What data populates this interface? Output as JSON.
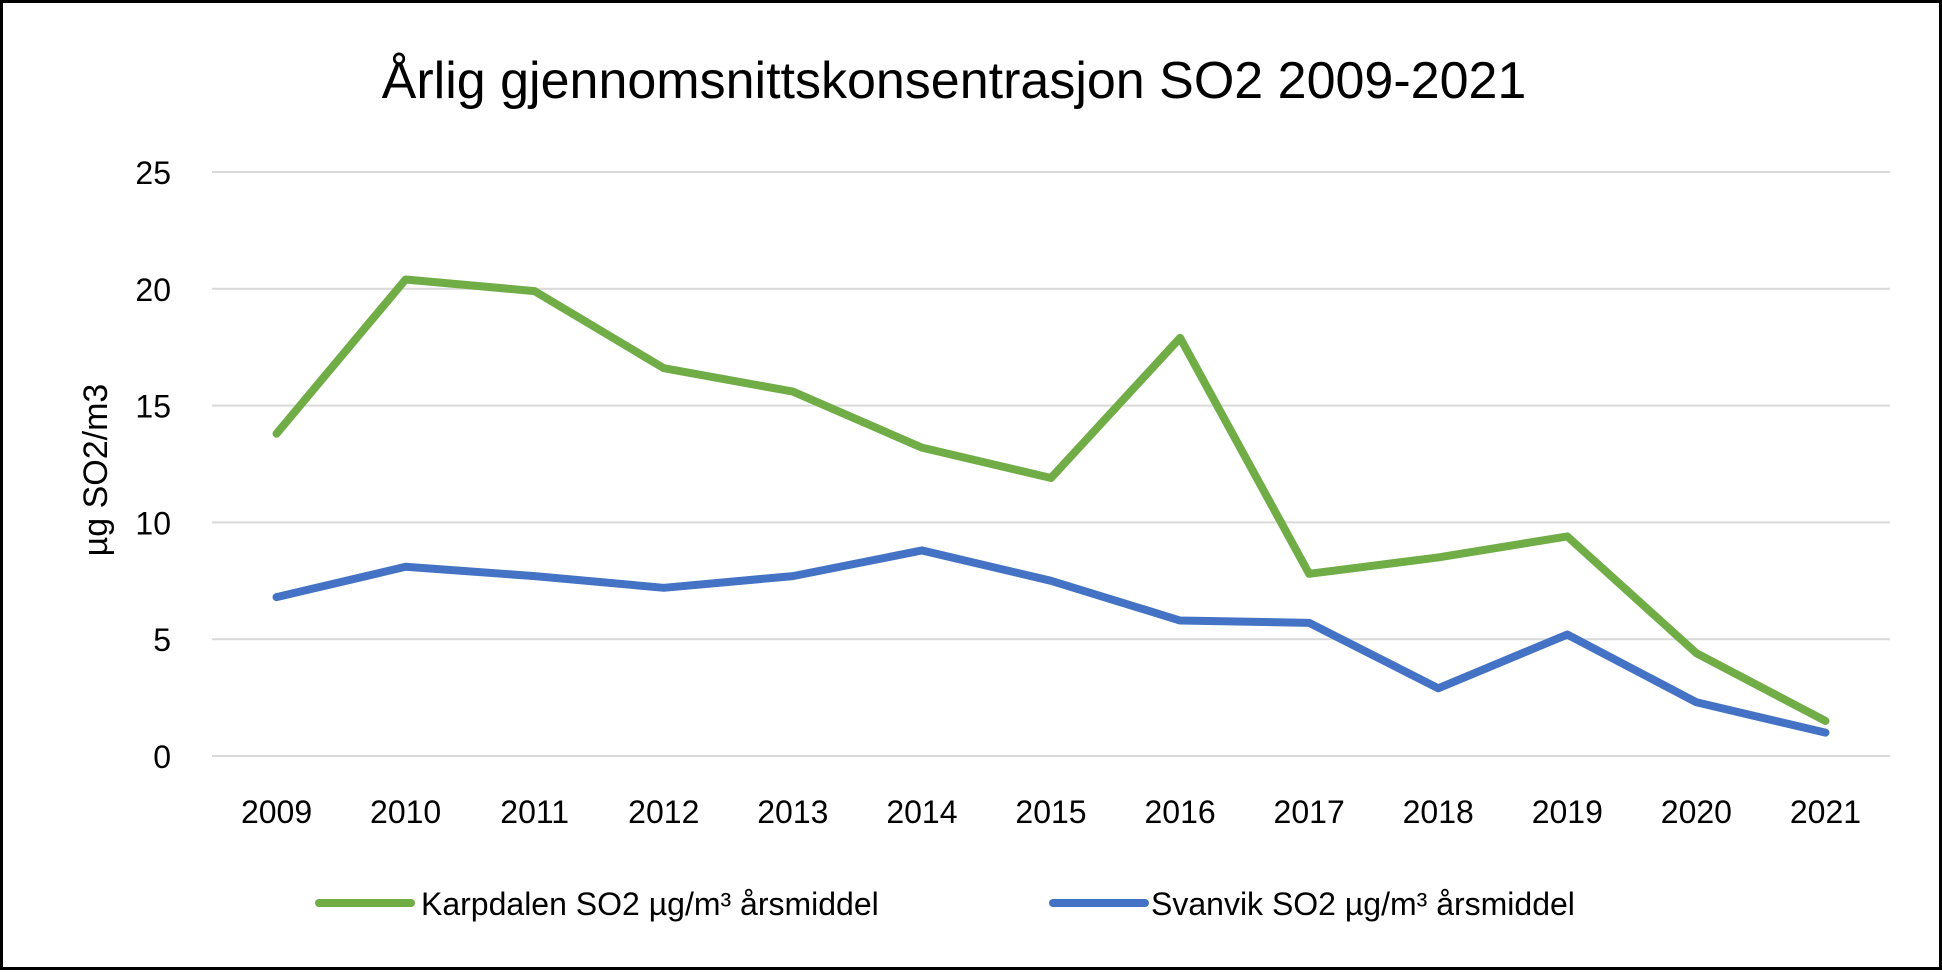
{
  "chart_data": {
    "type": "line",
    "title": "Årlig gjennomsnittskonsentrasjon SO2 2009-2021",
    "xlabel": "",
    "ylabel": "µg SO2/m3",
    "categories": [
      "2009",
      "2010",
      "2011",
      "2012",
      "2013",
      "2014",
      "2015",
      "2016",
      "2017",
      "2018",
      "2019",
      "2020",
      "2021"
    ],
    "ylim": [
      0,
      25
    ],
    "yticks": [
      "0",
      "5",
      "10",
      "15",
      "20",
      "25"
    ],
    "grid": true,
    "legend_position": "bottom",
    "series": [
      {
        "name": "Karpdalen SO2 µg/m³ årsmiddel",
        "color": "#70AD47",
        "values": [
          13.8,
          20.4,
          19.9,
          16.6,
          15.6,
          13.2,
          11.9,
          17.9,
          7.8,
          8.5,
          9.4,
          4.4,
          1.5
        ]
      },
      {
        "name": "Svanvik SO2 µg/m³ årsmiddel",
        "color": "#4472C4",
        "values": [
          6.8,
          8.1,
          7.7,
          7.2,
          7.7,
          8.8,
          7.5,
          5.8,
          5.7,
          2.9,
          5.2,
          2.3,
          1.0
        ]
      }
    ]
  }
}
